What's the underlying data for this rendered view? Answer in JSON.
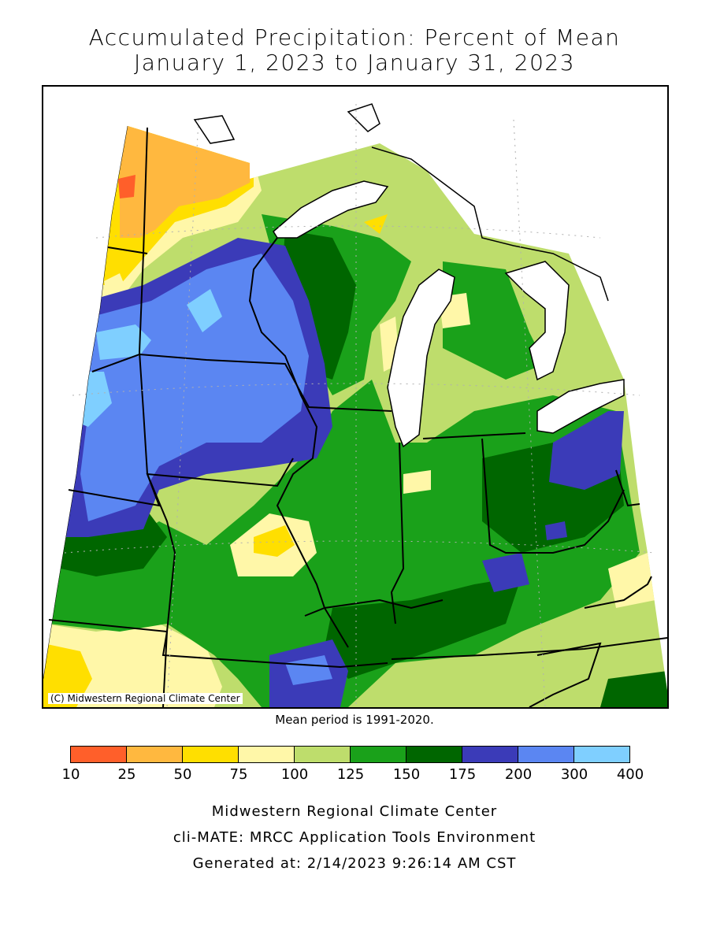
{
  "title": {
    "line1": "Accumulated Precipitation: Percent of Mean",
    "line2": "January 1, 2023 to January 31, 2023"
  },
  "map": {
    "copyright": "(C) Midwestern Regional Climate Center"
  },
  "mean_period": "Mean period is 1991-2020.",
  "legend": {
    "bins": [
      {
        "color": "#ff5f2a"
      },
      {
        "color": "#ffb83f"
      },
      {
        "color": "#ffdf00"
      },
      {
        "color": "#fff7a8"
      },
      {
        "color": "#bedd6c"
      },
      {
        "color": "#1aa11a"
      },
      {
        "color": "#006600"
      },
      {
        "color": "#3b3bb8"
      },
      {
        "color": "#5b86f2"
      },
      {
        "color": "#7fcfff"
      }
    ],
    "ticks": [
      "10",
      "25",
      "50",
      "75",
      "100",
      "125",
      "150",
      "175",
      "200",
      "300",
      "400"
    ]
  },
  "footer": {
    "org": "Midwestern Regional Climate Center",
    "app": "cli-MATE: MRCC Application Tools Environment",
    "generated": "Generated at: 2/14/2023 9:26:14 AM CST"
  }
}
